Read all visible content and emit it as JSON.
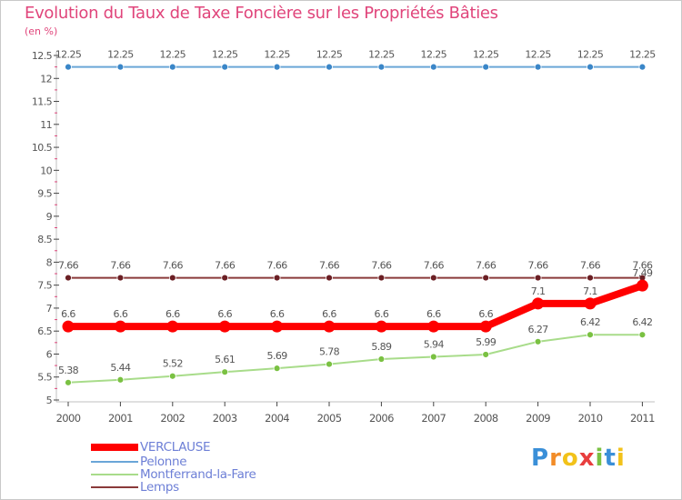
{
  "title": "Evolution du Taux de Taxe Foncière sur les Propriétés Bâties",
  "unit_label": "(en %)",
  "logo": {
    "text": "Proxiti",
    "letter_colors": [
      "#3a8fd8",
      "#f28c28",
      "#f2c21a",
      "#e83e3e",
      "#7ac142",
      "#3a8fd8",
      "#f2c21a"
    ]
  },
  "chart_data": {
    "type": "line",
    "title": "Evolution du Taux de Taxe Foncière sur les Propriétés Bâties",
    "ylabel": "(en %)",
    "xlabel": "",
    "x": [
      "2000",
      "2001",
      "2002",
      "2003",
      "2004",
      "2005",
      "2006",
      "2007",
      "2008",
      "2009",
      "2010",
      "2011"
    ],
    "ylim": [
      5,
      12.5
    ],
    "y_ticks": [
      "5",
      "5.5",
      "6",
      "6.5",
      "7",
      "7.5",
      "8",
      "8.5",
      "9",
      "9.5",
      "10",
      "10.5",
      "11",
      "11.5",
      "12",
      "12.5"
    ],
    "grid": false,
    "legend_position": "bottom-left",
    "series": [
      {
        "name": "Pelonne",
        "color": "#6aa6d8",
        "marker_color": "#3a86c8",
        "values": [
          12.25,
          12.25,
          12.25,
          12.25,
          12.25,
          12.25,
          12.25,
          12.25,
          12.25,
          12.25,
          12.25,
          12.25
        ],
        "labels": [
          "12.25",
          "12.25",
          "12.25",
          "12.25",
          "12.25",
          "12.25",
          "12.25",
          "12.25",
          "12.25",
          "12.25",
          "12.25",
          "12.25"
        ]
      },
      {
        "name": "Lemps",
        "color": "#8a3a3a",
        "marker_color": "#6b1f24",
        "values": [
          7.66,
          7.66,
          7.66,
          7.66,
          7.66,
          7.66,
          7.66,
          7.66,
          7.66,
          7.66,
          7.66,
          7.66
        ],
        "labels": [
          "7.66",
          "7.66",
          "7.66",
          "7.66",
          "7.66",
          "7.66",
          "7.66",
          "7.66",
          "7.66",
          "7.66",
          "7.66",
          "7.66"
        ]
      },
      {
        "name": "Montferrand-la-Fare",
        "color": "#a8dc8a",
        "marker_color": "#7ac142",
        "values": [
          5.38,
          5.44,
          5.52,
          5.61,
          5.69,
          5.78,
          5.89,
          5.94,
          5.99,
          6.27,
          6.42,
          6.42
        ],
        "labels": [
          "5.38",
          "5.44",
          "5.52",
          "5.61",
          "5.69",
          "5.78",
          "5.89",
          "5.94",
          "5.99",
          "6.27",
          "6.42",
          "6.42"
        ]
      },
      {
        "name": "VERCLAUSE",
        "color": "#ff0000",
        "marker_color": "#ff0000",
        "values": [
          6.6,
          6.6,
          6.6,
          6.6,
          6.6,
          6.6,
          6.6,
          6.6,
          6.6,
          7.1,
          7.1,
          7.49
        ],
        "labels": [
          "6.6",
          "6.6",
          "6.6",
          "6.6",
          "6.6",
          "6.6",
          "6.6",
          "6.6",
          "6.6",
          "7.1",
          "7.1",
          "7.49"
        ]
      }
    ],
    "legend": [
      {
        "name": "VERCLAUSE",
        "color": "#ff0000"
      },
      {
        "name": "Pelonne",
        "color": "#6aa6d8"
      },
      {
        "name": "Montferrand-la-Fare",
        "color": "#a8dc8a"
      },
      {
        "name": "Lemps",
        "color": "#8a3a3a"
      }
    ]
  }
}
